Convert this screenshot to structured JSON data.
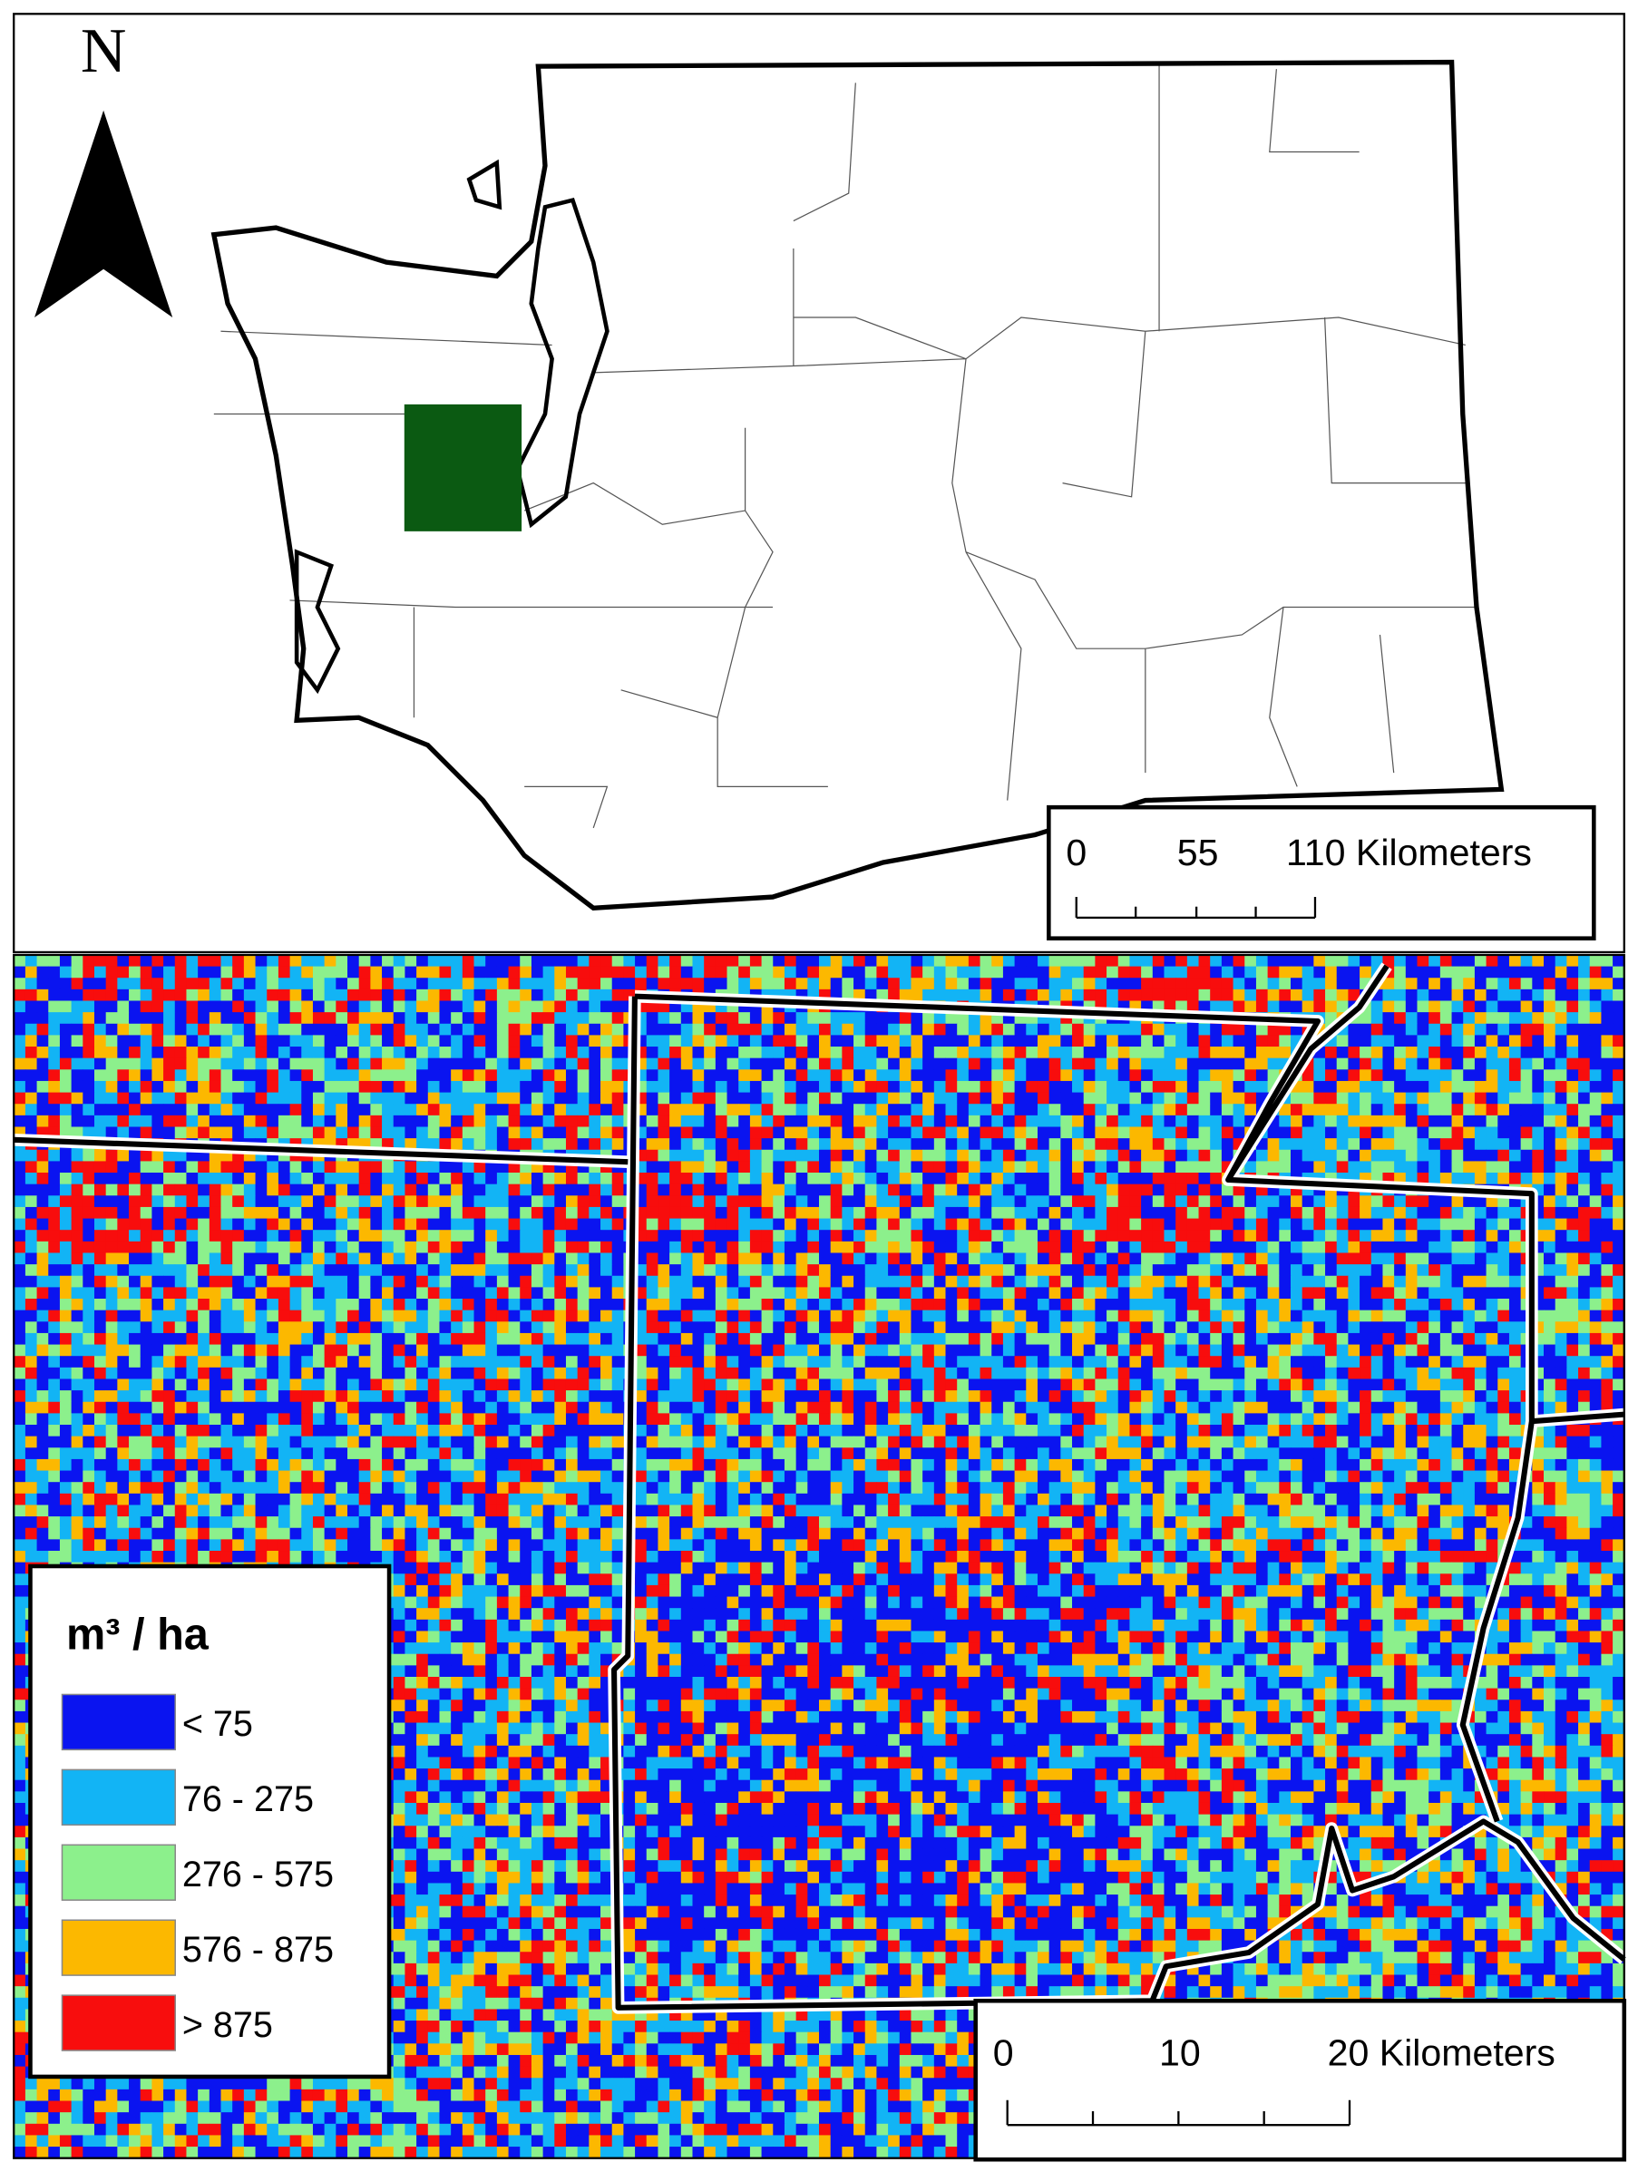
{
  "north_arrow": {
    "label": "N"
  },
  "overview_scale_bar": {
    "labels": [
      "0",
      "55",
      "110 Kilometers"
    ]
  },
  "detail_scale_bar": {
    "labels": [
      "0",
      "10",
      "20 Kilometers"
    ]
  },
  "legend": {
    "title": "m³ / ha",
    "items": [
      {
        "label": "< 75",
        "color": "#0a14f0"
      },
      {
        "label": "76 - 275",
        "color": "#12b4f5"
      },
      {
        "label": "276 - 575",
        "color": "#8cf08c"
      },
      {
        "label": "576 - 875",
        "color": "#fcb800"
      },
      {
        "label": "> 875",
        "color": "#f80d0d"
      }
    ]
  },
  "study_area_color": "#0b5a12"
}
